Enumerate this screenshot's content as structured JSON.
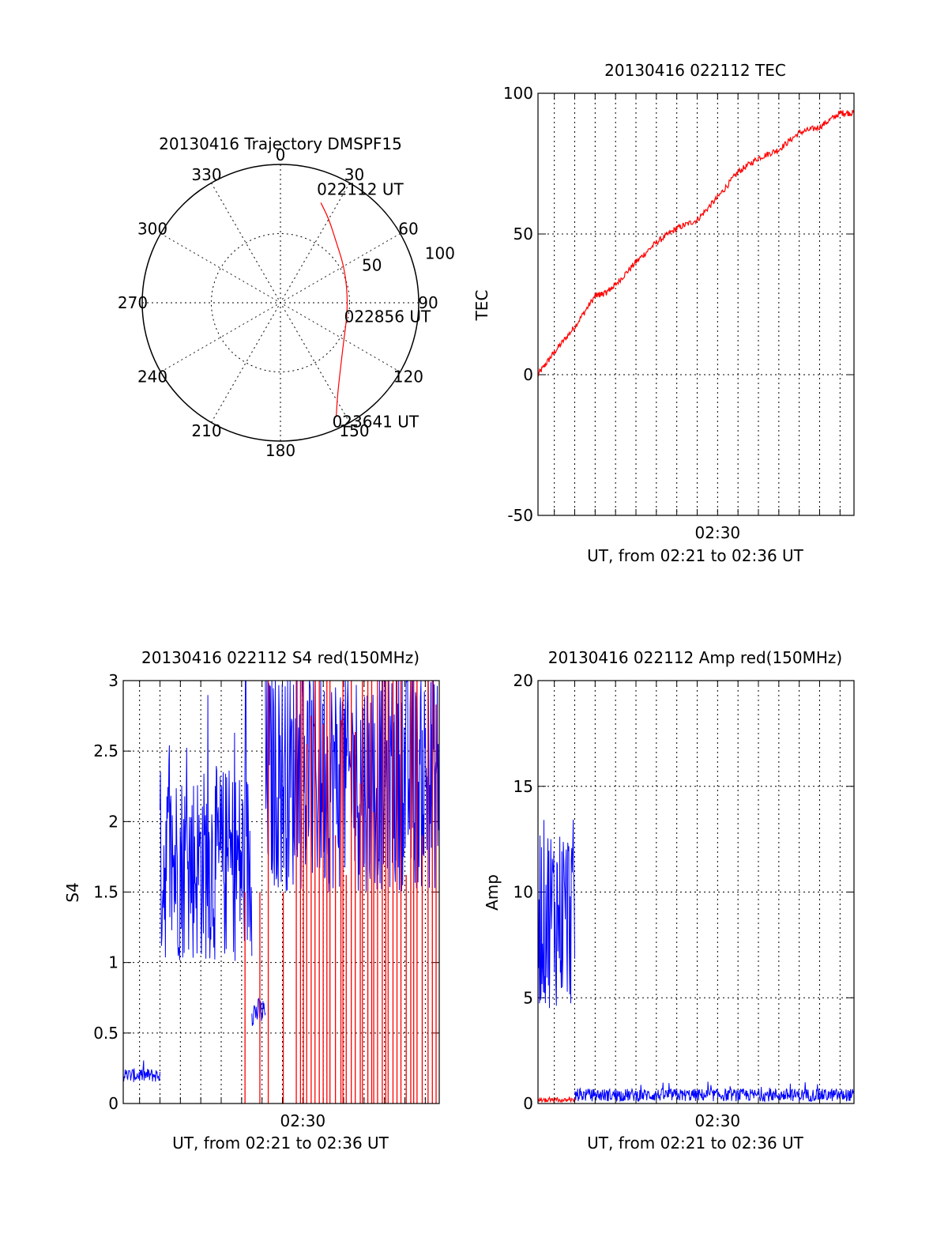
{
  "colors": {
    "red": "#ff0000",
    "blue": "#0000ff",
    "axis": "#000000",
    "grid": "#000000"
  },
  "chart_data": [
    {
      "type": "polar",
      "title": "20130416 Trajectory DMSPF15",
      "angle_labels": [
        "0",
        "30",
        "60",
        "90",
        "120",
        "150",
        "180",
        "210",
        "240",
        "270",
        "300",
        "330"
      ],
      "radius_labels": [
        "50",
        "100"
      ],
      "rlim": [
        0,
        100
      ],
      "grid": true,
      "series": [
        {
          "color": "red",
          "points": [
            {
              "az": 22,
              "r": 78
            },
            {
              "az": 30,
              "r": 70
            },
            {
              "az": 42,
              "r": 60
            },
            {
              "az": 60,
              "r": 53
            },
            {
              "az": 80,
              "r": 49
            },
            {
              "az": 100,
              "r": 49
            },
            {
              "az": 120,
              "r": 53
            },
            {
              "az": 135,
              "r": 62
            },
            {
              "az": 148,
              "r": 78
            },
            {
              "az": 154,
              "r": 92
            }
          ]
        }
      ],
      "annotations": [
        {
          "text": "022112 UT",
          "az": 22,
          "r": 78
        },
        {
          "text": "022856 UT",
          "az": 93,
          "r": 49
        },
        {
          "text": "023641 UT",
          "az": 154,
          "r": 92
        }
      ]
    },
    {
      "type": "line",
      "title": "20130416 022112 TEC",
      "xlabel": "UT, from 02:21 to 02:36 UT",
      "ylabel": "TEC",
      "xlim": [
        "02:21:12",
        "02:36:41"
      ],
      "ylim": [
        -50,
        100
      ],
      "yticks": [
        -50,
        0,
        50,
        100
      ],
      "xtick_label": "02:30",
      "grid": true,
      "series": [
        {
          "color": "red",
          "x": [
            "02:21:12",
            "02:22:00",
            "02:23:00",
            "02:24:00",
            "02:24:30",
            "02:25:00",
            "02:26:00",
            "02:27:00",
            "02:28:00",
            "02:29:00",
            "02:30:00",
            "02:31:00",
            "02:32:00",
            "02:33:00",
            "02:34:00",
            "02:35:00",
            "02:36:00",
            "02:36:41"
          ],
          "y": [
            0,
            8,
            17,
            28,
            29,
            32,
            40,
            47,
            52,
            55,
            63,
            72,
            77,
            80,
            86,
            88,
            93,
            93
          ]
        }
      ]
    },
    {
      "type": "line",
      "title": "20130416 022112 S4 red(150MHz)",
      "xlabel": "UT, from 02:21 to 02:36 UT",
      "ylabel": "S4",
      "xlim": [
        "02:21:12",
        "02:36:41"
      ],
      "ylim": [
        0,
        3
      ],
      "yticks": [
        0,
        0.5,
        1,
        1.5,
        2,
        2.5,
        3
      ],
      "xtick_label": "02:30",
      "grid": true,
      "series": [
        {
          "color": "blue",
          "segments": [
            {
              "x": [
                "02:21:12",
                "02:23:00"
              ],
              "level": 0.2,
              "spread": 0.05
            },
            {
              "x": [
                "02:23:00",
                "02:27:30"
              ],
              "level": 1.7,
              "spread": 0.7
            },
            {
              "x": [
                "02:27:30",
                "02:28:10"
              ],
              "level": 0.65,
              "spread": 0.1
            },
            {
              "x": [
                "02:28:10",
                "02:36:41"
              ],
              "level": 2.3,
              "spread": 0.8
            }
          ]
        },
        {
          "color": "red",
          "spikes": {
            "x_range": [
              "02:27:10",
              "02:36:41"
            ],
            "range": [
              0,
              3
            ]
          }
        }
      ]
    },
    {
      "type": "line",
      "title": "20130416 022112 Amp red(150MHz)",
      "xlabel": "UT, from 02:21 to 02:36 UT",
      "ylabel": "Amp",
      "xlim": [
        "02:21:12",
        "02:36:41"
      ],
      "ylim": [
        0,
        20
      ],
      "yticks": [
        0,
        5,
        10,
        15,
        20
      ],
      "xtick_label": "02:30",
      "grid": true,
      "series": [
        {
          "color": "blue",
          "segments": [
            {
              "x": [
                "02:21:12",
                "02:23:00"
              ],
              "level": 9,
              "spread": 4.5
            },
            {
              "x": [
                "02:23:00",
                "02:36:41"
              ],
              "level": 0.4,
              "spread": 0.3
            }
          ]
        },
        {
          "color": "red",
          "segments": [
            {
              "x": [
                "02:21:12",
                "02:23:00"
              ],
              "level": 0.15,
              "spread": 0.1
            }
          ]
        }
      ]
    }
  ]
}
